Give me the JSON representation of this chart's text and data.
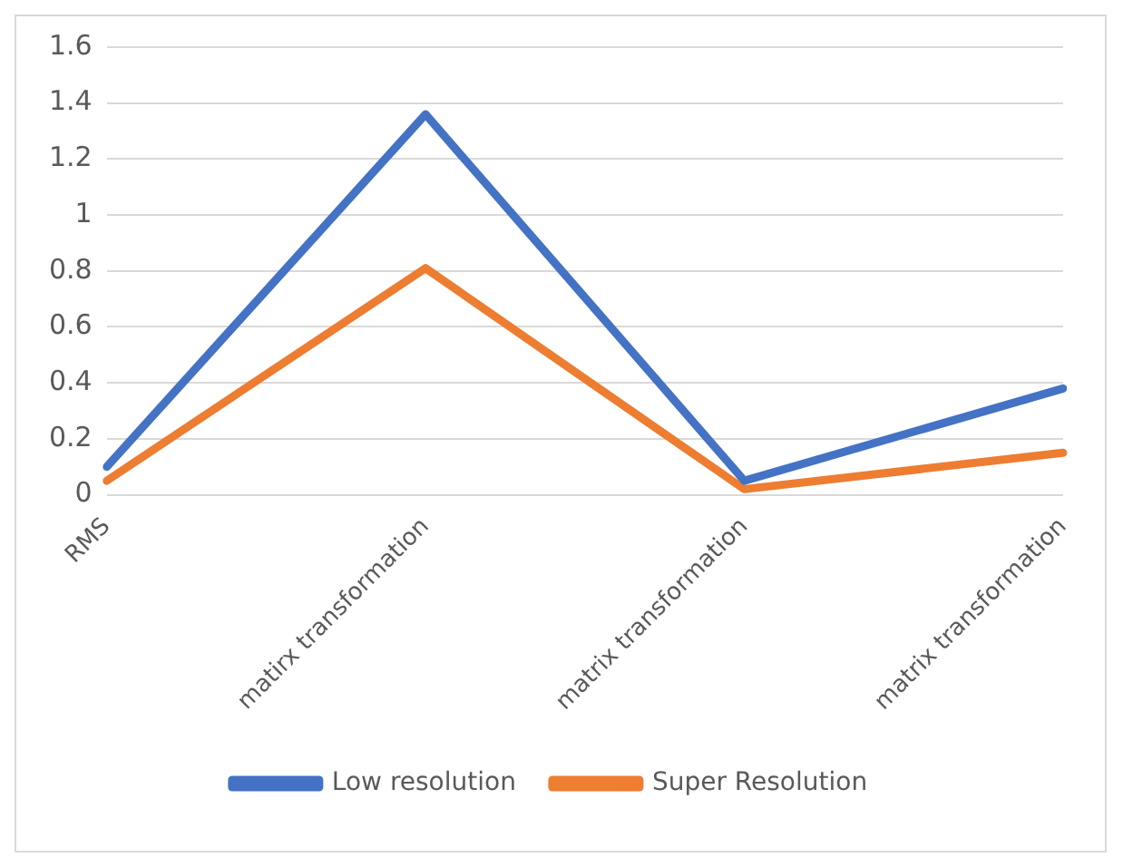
{
  "chart_data": {
    "type": "line",
    "categories": [
      "RMS",
      "matirx transformation",
      "matrix transformation",
      "matrix transformation"
    ],
    "series": [
      {
        "name": "Low resolution",
        "color": "#4472c4",
        "values": [
          0.1,
          1.36,
          0.05,
          0.38
        ]
      },
      {
        "name": "Super Resolution",
        "color": "#ed7d31",
        "values": [
          0.05,
          0.81,
          0.02,
          0.15
        ]
      }
    ],
    "ylim": [
      0,
      1.6
    ],
    "yticks": [
      0,
      0.2,
      0.4,
      0.6,
      0.8,
      1,
      1.2,
      1.4,
      1.6
    ],
    "grid": "y",
    "legend": "bottom",
    "marker": "none",
    "line_style": "solid"
  }
}
